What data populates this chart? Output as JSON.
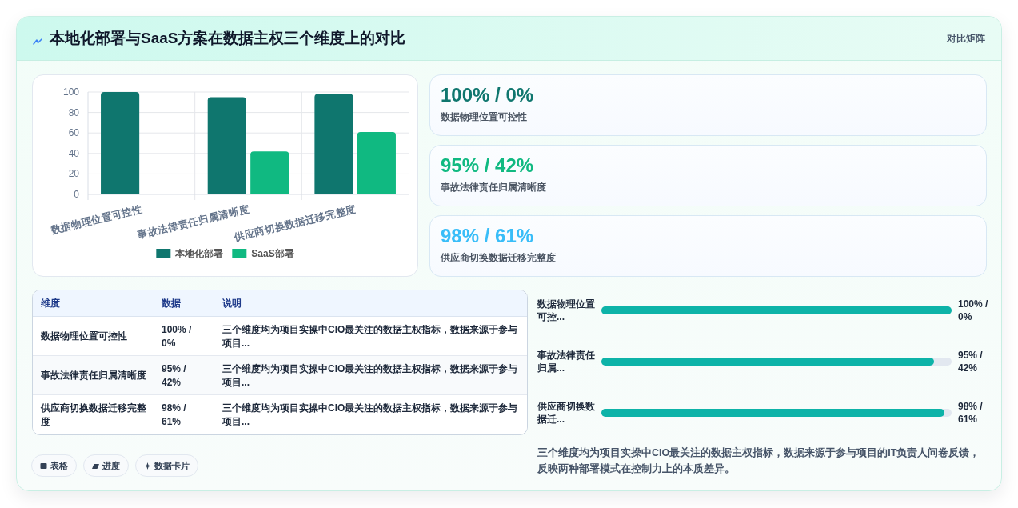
{
  "chart_data": [
    {
      "type": "other",
      "title": "本地化部署与SaaS方案在数据主权三个维度上的对比",
      "subtitle": "对比矩阵"
    },
    {
      "type": "bar",
      "categories": [
        "数据物理位置可控性",
        "事故法律责任归属清晰度",
        "供应商切换数据迁移完整度"
      ],
      "series": [
        {
          "name": "本地化部署",
          "color": "#0f766e",
          "values": [
            100,
            95,
            98
          ]
        },
        {
          "name": "SaaS部署",
          "color": "#10b981",
          "values": [
            0,
            42,
            61
          ]
        }
      ],
      "ylim": [
        0,
        100
      ],
      "yticks": [
        0,
        20,
        40,
        60,
        80,
        100
      ],
      "grid": true,
      "legend": "bottom"
    },
    {
      "type": "other",
      "annotations": [
        "100% / 0%",
        "数据物理位置可控性",
        "95% / 42%",
        "事故法律责任归属清晰度",
        "98% / 61%",
        "供应商切换数据迁移完整度"
      ],
      "colors": [
        "#0f766e",
        "#10b981",
        "#38bdf8"
      ]
    },
    {
      "type": "other",
      "categories": [
        "维度",
        "数据",
        "说明"
      ],
      "annotations": [
        "数据物理位置可控性",
        "100% / 0%",
        "三个维度均为项目实操中CIO最关注的数据主权指标，数据来源于参与项目...",
        "事故法律责任归属清晰度",
        "95% / 42%",
        "三个维度均为项目实操中CIO最关注的数据主权指标，数据来源于参与项目...",
        "供应商切换数据迁移完整度",
        "98% / 61%",
        "三个维度均为项目实操中CIO最关注的数据主权指标，数据来源于参与项目..."
      ]
    },
    {
      "type": "bar",
      "orientation": "horizontal",
      "categories": [
        "数据物理位置可控...",
        "事故法律责任归属...",
        "供应商切换数据迁..."
      ],
      "values": [
        100,
        95,
        98
      ],
      "xlim": [
        0,
        100
      ],
      "tick_labels": "y",
      "value_labels": [
        "100% / 0%",
        "95% / 42%",
        "98% / 61%"
      ],
      "color": "#0db3a8",
      "annotations": [
        "三个维度均为项目实操中CIO最关注的数据主权指标，数据来源于参与项目的IT负责人问卷反馈，反映两种部署模式在控制力上的本质差异。"
      ]
    },
    {
      "type": "other",
      "annotations": [
        "表格",
        "进度",
        "数据卡片"
      ]
    }
  ]
}
